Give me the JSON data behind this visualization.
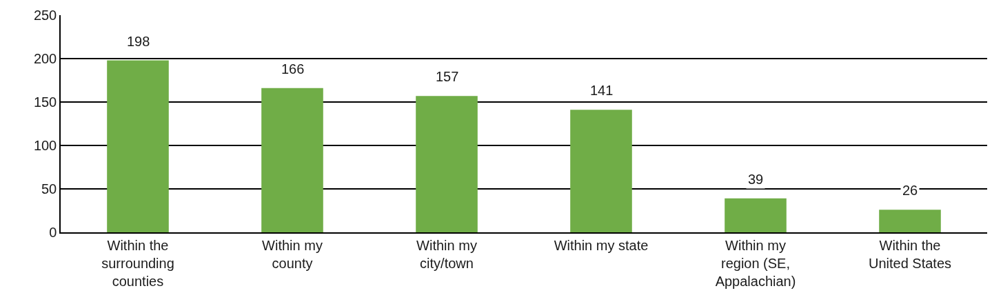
{
  "chart_data": {
    "type": "bar",
    "categories": [
      "Within the surrounding counties",
      "Within my county",
      "Within my city/town",
      "Within my state",
      "Within my region (SE, Appalachian)",
      "Within the United States"
    ],
    "values": [
      198,
      166,
      157,
      141,
      39,
      26
    ],
    "color": "#70ad47",
    "ylim": [
      0,
      250
    ],
    "yticks": [
      0,
      50,
      100,
      150,
      200,
      250
    ],
    "grid": "y",
    "data_labels": true,
    "legend": false
  }
}
